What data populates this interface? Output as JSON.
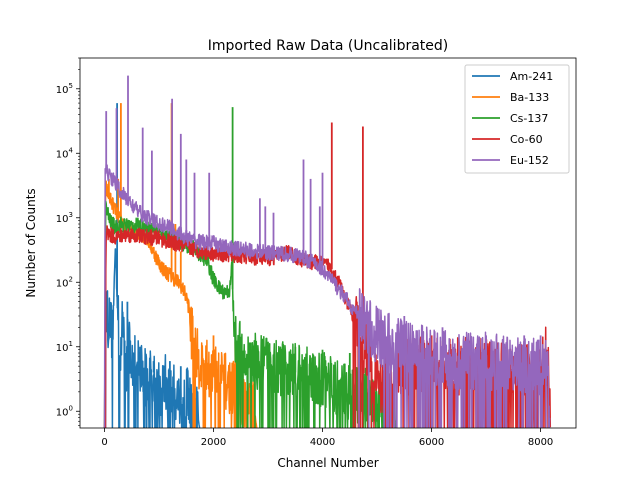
{
  "chart_data": {
    "type": "line",
    "title": "Imported Raw Data (Uncalibrated)",
    "xlabel": "Channel Number",
    "ylabel": "Number of Counts",
    "xlim": [
      -450,
      8650
    ],
    "ylim": [
      0.55,
      300000
    ],
    "yscale": "log",
    "grid": false,
    "legend_position": "top-right",
    "x_ticks": [
      {
        "value": 0,
        "label": "0"
      },
      {
        "value": 2000,
        "label": "2000"
      },
      {
        "value": 4000,
        "label": "4000"
      },
      {
        "value": 6000,
        "label": "6000"
      },
      {
        "value": 8000,
        "label": "8000"
      }
    ],
    "y_ticks": [
      {
        "value": 1,
        "base": "10",
        "exp": "0"
      },
      {
        "value": 10,
        "base": "10",
        "exp": "1"
      },
      {
        "value": 100,
        "base": "10",
        "exp": "2"
      },
      {
        "value": 1000,
        "base": "10",
        "exp": "3"
      },
      {
        "value": 10000,
        "base": "10",
        "exp": "4"
      },
      {
        "value": 100000,
        "base": "10",
        "exp": "5"
      }
    ],
    "series": [
      {
        "name": "Am-241",
        "color": "#1f77b4",
        "points": [
          [
            0,
            0.5
          ],
          [
            30,
            30
          ],
          [
            100,
            22
          ],
          [
            150,
            15
          ],
          [
            200,
            400
          ],
          [
            230,
            60
          ],
          [
            280,
            8
          ],
          [
            350,
            30
          ],
          [
            400,
            5
          ],
          [
            450,
            18
          ],
          [
            500,
            4
          ],
          [
            600,
            8
          ],
          [
            700,
            4
          ],
          [
            800,
            3
          ],
          [
            900,
            4
          ],
          [
            1000,
            2
          ],
          [
            1100,
            3
          ],
          [
            1200,
            2
          ],
          [
            1300,
            2
          ],
          [
            1400,
            1.5
          ],
          [
            1500,
            2
          ],
          [
            1600,
            1
          ],
          [
            1700,
            1
          ],
          [
            1750,
            0.5
          ]
        ],
        "spikes": [
          [
            230,
            60000
          ],
          [
            420,
            50
          ],
          [
            650,
            10
          ],
          [
            900,
            6
          ],
          [
            1200,
            6
          ],
          [
            1400,
            5
          ]
        ]
      },
      {
        "name": "Ba-133",
        "color": "#ff7f0e",
        "points": [
          [
            0,
            0.5
          ],
          [
            20,
            3000
          ],
          [
            100,
            2000
          ],
          [
            200,
            1300
          ],
          [
            300,
            900
          ],
          [
            400,
            700
          ],
          [
            500,
            650
          ],
          [
            600,
            600
          ],
          [
            700,
            550
          ],
          [
            800,
            450
          ],
          [
            900,
            300
          ],
          [
            1000,
            200
          ],
          [
            1100,
            150
          ],
          [
            1200,
            130
          ],
          [
            1300,
            110
          ],
          [
            1400,
            90
          ],
          [
            1500,
            60
          ],
          [
            1550,
            40
          ],
          [
            1600,
            15
          ],
          [
            1700,
            7
          ],
          [
            1800,
            5
          ],
          [
            2000,
            4
          ],
          [
            2200,
            3
          ],
          [
            2400,
            2
          ],
          [
            2600,
            1.5
          ],
          [
            2750,
            1
          ],
          [
            2800,
            0.5
          ]
        ],
        "spikes": [
          [
            80,
            4000
          ],
          [
            250,
            4000
          ],
          [
            300,
            60000
          ],
          [
            1230,
            60000
          ],
          [
            1300,
            800
          ],
          [
            1400,
            300
          ],
          [
            1600,
            20
          ],
          [
            2000,
            15
          ],
          [
            2400,
            12
          ]
        ]
      },
      {
        "name": "Cs-137",
        "color": "#2ca02c",
        "points": [
          [
            0,
            0.5
          ],
          [
            20,
            1500
          ],
          [
            100,
            900
          ],
          [
            200,
            700
          ],
          [
            300,
            800
          ],
          [
            400,
            750
          ],
          [
            600,
            750
          ],
          [
            800,
            700
          ],
          [
            1000,
            600
          ],
          [
            1200,
            500
          ],
          [
            1400,
            420
          ],
          [
            1600,
            350
          ],
          [
            1700,
            300
          ],
          [
            1800,
            250
          ],
          [
            1900,
            200
          ],
          [
            2000,
            110
          ],
          [
            2100,
            80
          ],
          [
            2200,
            70
          ],
          [
            2300,
            75
          ],
          [
            2340,
            200
          ],
          [
            2360,
            30
          ],
          [
            2400,
            15
          ],
          [
            2500,
            8
          ],
          [
            2700,
            6
          ],
          [
            3000,
            5
          ],
          [
            3500,
            4
          ],
          [
            4000,
            3
          ],
          [
            4500,
            2
          ],
          [
            5000,
            1.5
          ],
          [
            5300,
            1
          ],
          [
            5350,
            0.5
          ]
        ],
        "spikes": [
          [
            2350,
            52000
          ],
          [
            3000,
            12
          ],
          [
            3500,
            10
          ],
          [
            4000,
            9
          ],
          [
            4500,
            8
          ]
        ]
      },
      {
        "name": "Co-60",
        "color": "#d62728",
        "points": [
          [
            0,
            0.5
          ],
          [
            30,
            600
          ],
          [
            100,
            550
          ],
          [
            200,
            500
          ],
          [
            400,
            550
          ],
          [
            600,
            530
          ],
          [
            800,
            500
          ],
          [
            1000,
            480
          ],
          [
            1200,
            420
          ],
          [
            1400,
            380
          ],
          [
            1600,
            330
          ],
          [
            1800,
            300
          ],
          [
            2000,
            280
          ],
          [
            2200,
            270
          ],
          [
            2400,
            260
          ],
          [
            2600,
            250
          ],
          [
            2800,
            240
          ],
          [
            3000,
            230
          ],
          [
            3200,
            260
          ],
          [
            3400,
            300
          ],
          [
            3500,
            250
          ],
          [
            3700,
            210
          ],
          [
            3900,
            200
          ],
          [
            4000,
            190
          ],
          [
            4100,
            180
          ],
          [
            4200,
            150
          ],
          [
            4300,
            100
          ],
          [
            4400,
            60
          ],
          [
            4500,
            40
          ],
          [
            4600,
            25
          ],
          [
            4700,
            12
          ],
          [
            4800,
            10
          ],
          [
            4850,
            6
          ],
          [
            4900,
            4
          ],
          [
            5000,
            3
          ],
          [
            5200,
            2
          ],
          [
            5400,
            4
          ],
          [
            5600,
            5
          ],
          [
            5800,
            5
          ],
          [
            6000,
            5
          ],
          [
            6200,
            5
          ],
          [
            6500,
            5
          ],
          [
            7000,
            5
          ],
          [
            7500,
            4
          ],
          [
            8000,
            4
          ],
          [
            8100,
            8
          ],
          [
            8150,
            3
          ],
          [
            8180,
            0.5
          ]
        ],
        "spikes": [
          [
            4170,
            30000
          ],
          [
            4740,
            26000
          ],
          [
            5150,
            10
          ],
          [
            6000,
            15
          ],
          [
            6500,
            12
          ],
          [
            7000,
            12
          ]
        ]
      },
      {
        "name": "Eu-152",
        "color": "#9467bd",
        "points": [
          [
            0,
            0.5
          ],
          [
            10,
            7000
          ],
          [
            50,
            5000
          ],
          [
            100,
            4500
          ],
          [
            200,
            3500
          ],
          [
            300,
            2500
          ],
          [
            400,
            2000
          ],
          [
            500,
            1600
          ],
          [
            600,
            1300
          ],
          [
            700,
            1100
          ],
          [
            800,
            1000
          ],
          [
            900,
            900
          ],
          [
            1000,
            820
          ],
          [
            1200,
            700
          ],
          [
            1400,
            550
          ],
          [
            1600,
            450
          ],
          [
            1800,
            420
          ],
          [
            2000,
            400
          ],
          [
            2200,
            350
          ],
          [
            2400,
            330
          ],
          [
            2600,
            320
          ],
          [
            2800,
            300
          ],
          [
            3000,
            290
          ],
          [
            3200,
            280
          ],
          [
            3400,
            270
          ],
          [
            3600,
            250
          ],
          [
            3800,
            210
          ],
          [
            4000,
            160
          ],
          [
            4200,
            100
          ],
          [
            4400,
            60
          ],
          [
            4600,
            35
          ],
          [
            4800,
            22
          ],
          [
            5000,
            15
          ],
          [
            5200,
            12
          ],
          [
            5400,
            10
          ],
          [
            5600,
            9
          ],
          [
            5800,
            8
          ],
          [
            6000,
            7
          ],
          [
            6500,
            6
          ],
          [
            7000,
            6
          ],
          [
            7500,
            5
          ],
          [
            8000,
            5
          ],
          [
            8100,
            5
          ],
          [
            8150,
            5
          ],
          [
            8170,
            0.5
          ]
        ],
        "spikes": [
          [
            30,
            45000
          ],
          [
            220,
            50000
          ],
          [
            430,
            160000
          ],
          [
            700,
            25000
          ],
          [
            870,
            11000
          ],
          [
            1240,
            70000
          ],
          [
            1400,
            20000
          ],
          [
            1500,
            8000
          ],
          [
            1650,
            5000
          ],
          [
            1920,
            5000
          ],
          [
            2850,
            2000
          ],
          [
            2950,
            1500
          ],
          [
            3100,
            1200
          ],
          [
            3650,
            8000
          ],
          [
            3780,
            4000
          ],
          [
            3950,
            1500
          ],
          [
            4000,
            5000
          ],
          [
            5000,
            40
          ],
          [
            5500,
            30
          ],
          [
            6200,
            20
          ],
          [
            7000,
            15
          ],
          [
            7700,
            15
          ],
          [
            8000,
            15
          ]
        ]
      }
    ]
  }
}
